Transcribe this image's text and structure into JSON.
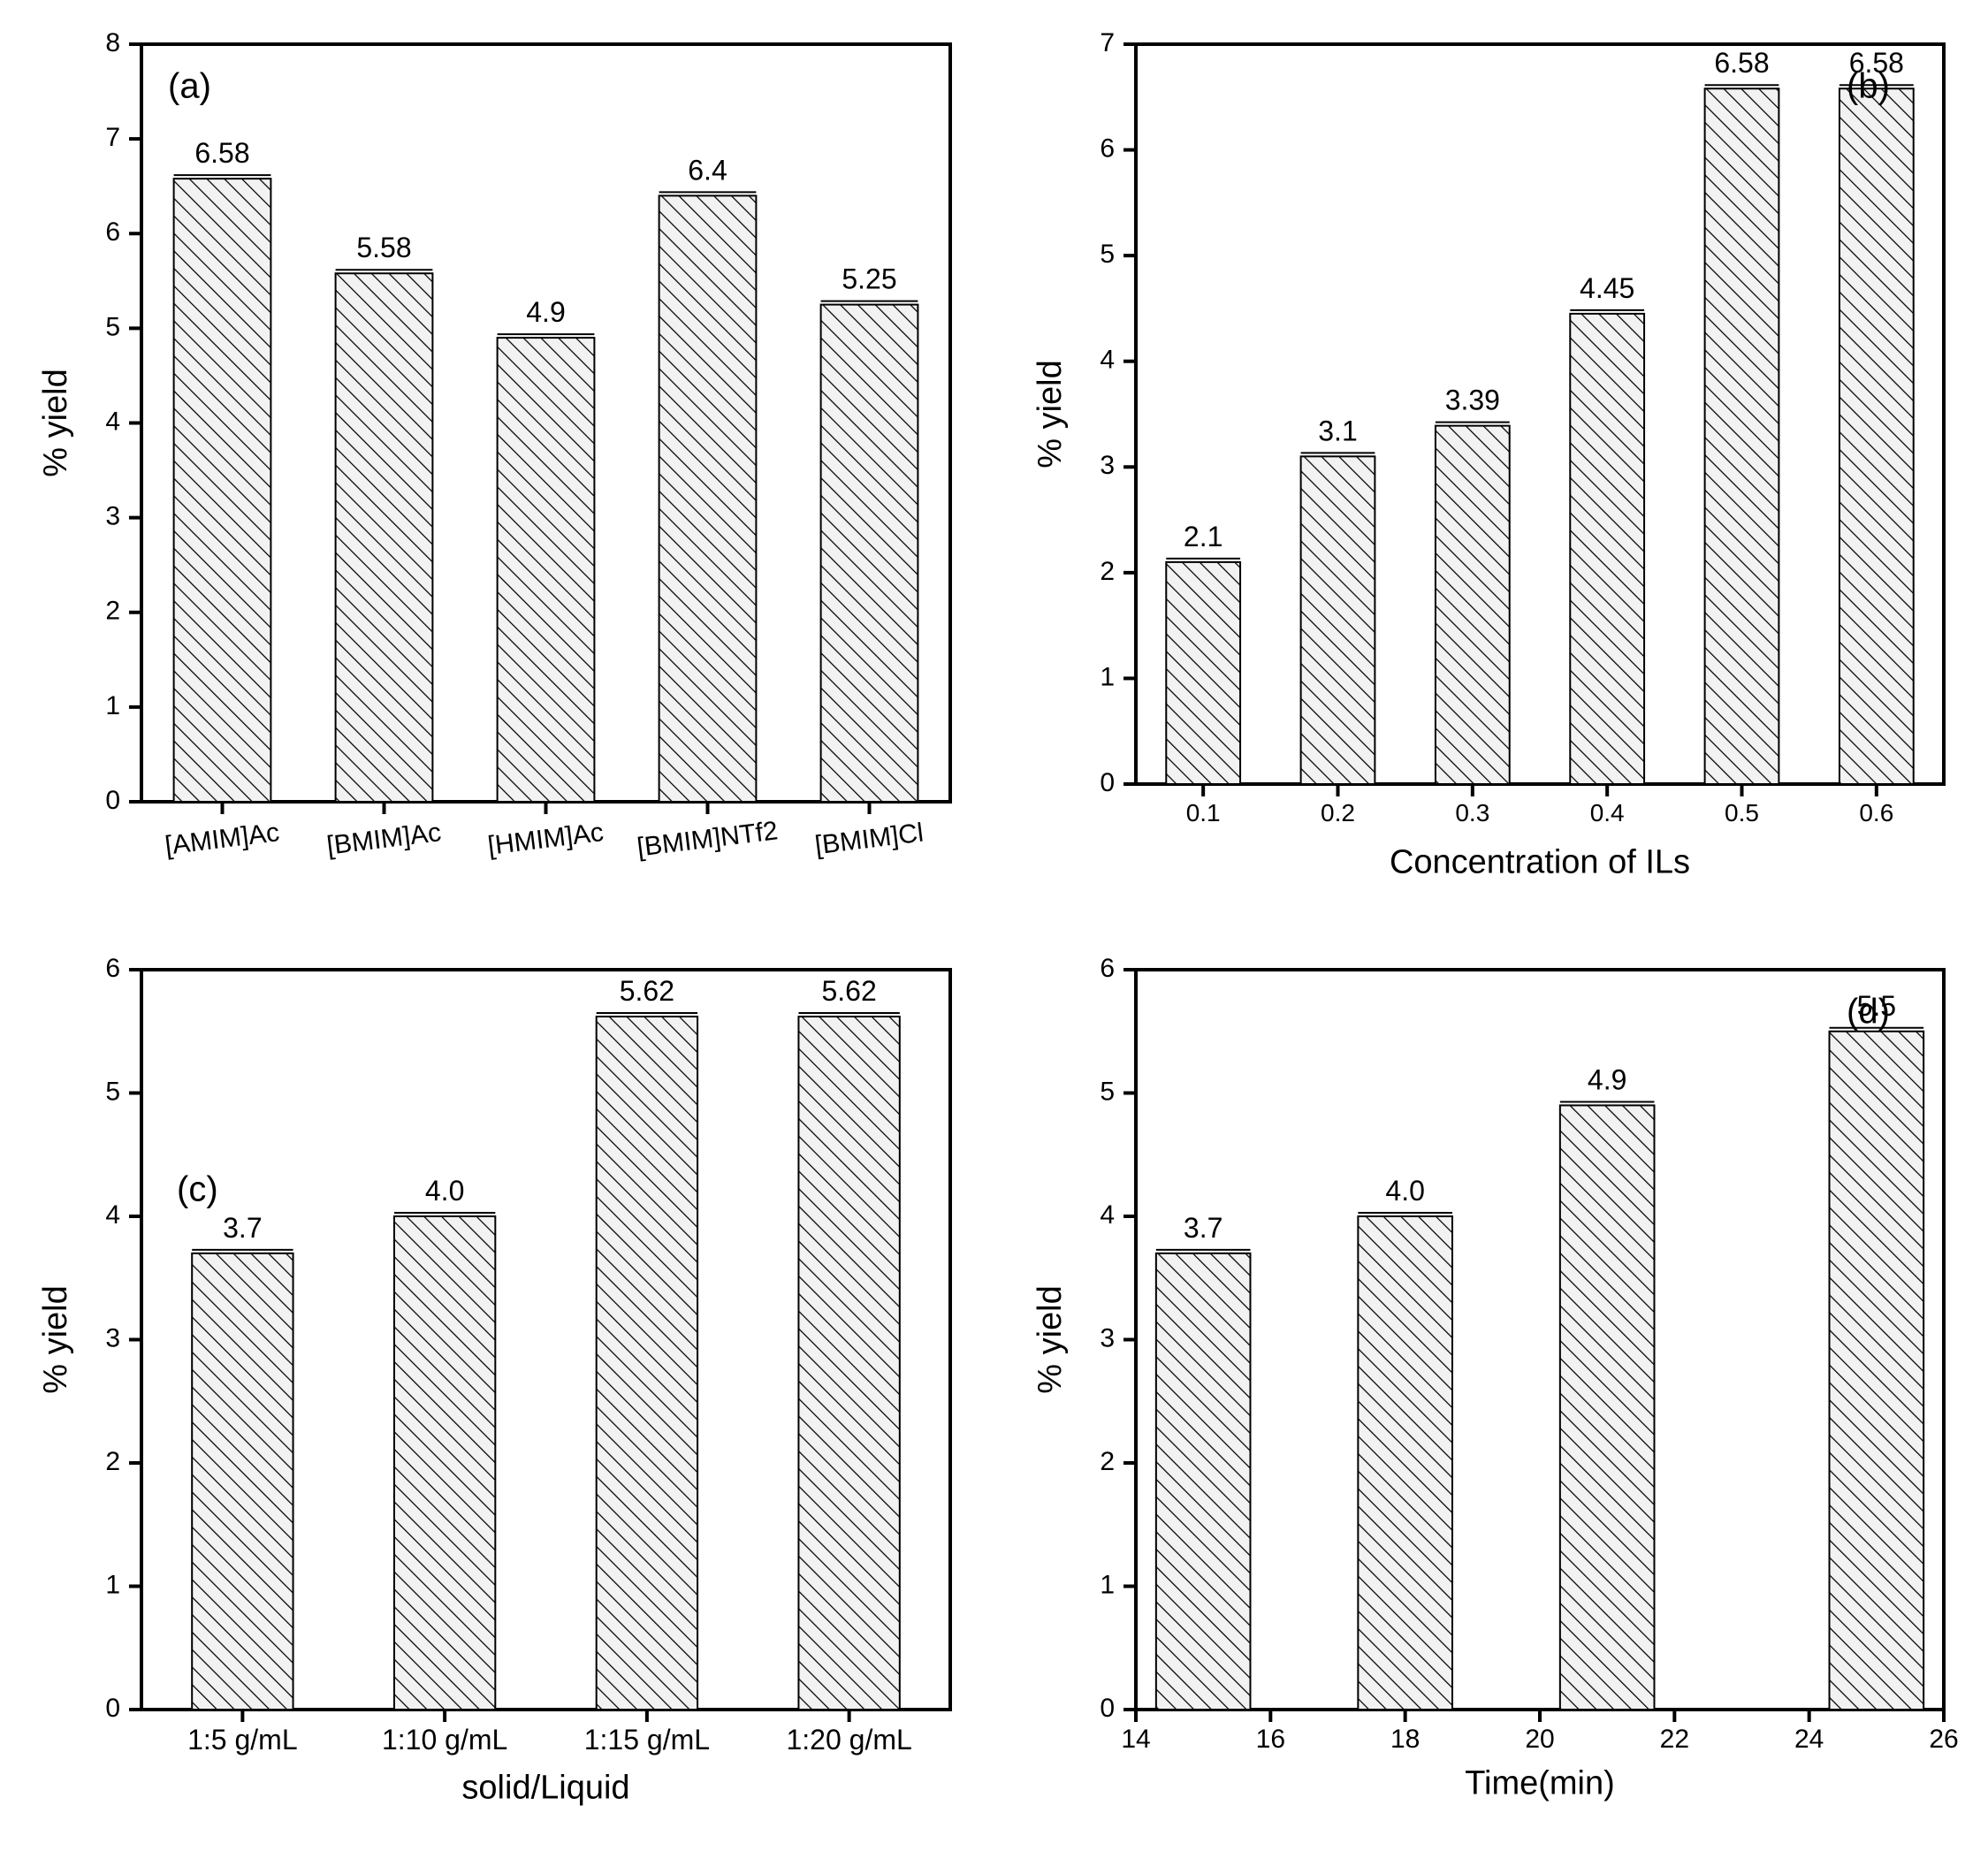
{
  "global": {
    "background_color": "#ffffff",
    "bar_fill": "#f2f2f2",
    "bar_stroke": "#000000",
    "hatch_color": "#000000",
    "axis_color": "#000000",
    "axis_stroke_width": 4,
    "tick_length": 14,
    "tick_width": 4,
    "tick_font_size": 30,
    "label_font_size": 38,
    "panel_label_font_size": 40,
    "value_font_size": 32,
    "bar_stroke_width": 2,
    "hatch_spacing": 14,
    "hatch_width": 2.5
  },
  "panels": {
    "a": {
      "type": "bar",
      "panel_label": "(a)",
      "ylabel": "% yield",
      "xlabel": "",
      "ylim": [
        0,
        8
      ],
      "ytick_step": 1,
      "bar_width": 0.6,
      "categories": [
        "[AMIM]Ac",
        "[BMIM]Ac",
        "[HMIM]Ac",
        "[BMIM]NTf2",
        "[BMIM]Cl"
      ],
      "values": [
        6.58,
        5.58,
        4.9,
        6.4,
        5.25
      ],
      "value_labels": [
        "6.58",
        "5.58",
        "4.9",
        "6.4",
        "5.25"
      ],
      "xtick_font_size": 30,
      "xtick_rotate": true
    },
    "b": {
      "type": "bar",
      "panel_label": "(b)",
      "ylabel": "% yield",
      "xlabel": "Concentration of ILs",
      "ylim": [
        0,
        7
      ],
      "ytick_step": 1,
      "bar_width": 0.55,
      "categories": [
        "0.1",
        "0.2",
        "0.3",
        "0.4",
        "0.5",
        "0.6"
      ],
      "values": [
        2.1,
        3.1,
        3.39,
        4.45,
        6.58,
        6.58
      ],
      "value_labels": [
        "2.1",
        "3.1",
        "3.39",
        "4.45",
        "6.58",
        "6.58"
      ],
      "xtick_font_size": 28,
      "xtick_rotate": false
    },
    "c": {
      "type": "bar",
      "panel_label": "(c)",
      "ylabel": "% yield",
      "xlabel": "solid/Liquid",
      "ylim": [
        0,
        6
      ],
      "ytick_step": 1,
      "bar_width": 0.5,
      "categories": [
        "1:5 g/mL",
        "1:10 g/mL",
        "1:15 g/mL",
        "1:20 g/mL"
      ],
      "values": [
        3.7,
        4.0,
        5.62,
        5.62
      ],
      "value_labels": [
        "3.7",
        "4.0",
        "5.62",
        "5.62"
      ],
      "xtick_font_size": 32,
      "xtick_rotate": false
    },
    "d": {
      "type": "bar-on-numeric-x",
      "panel_label": "(d)",
      "ylabel": "% yield",
      "xlabel": "Time(min)",
      "ylim": [
        0,
        6
      ],
      "ytick_step": 1,
      "xlim": [
        14,
        26
      ],
      "xtick_step": 2,
      "bar_width_units": 1.4,
      "x_positions": [
        15,
        18,
        21,
        25
      ],
      "values": [
        3.7,
        4.0,
        4.9,
        5.5
      ],
      "value_labels": [
        "3.7",
        "4.0",
        "4.9",
        "5.5"
      ],
      "xtick_font_size": 30
    }
  }
}
